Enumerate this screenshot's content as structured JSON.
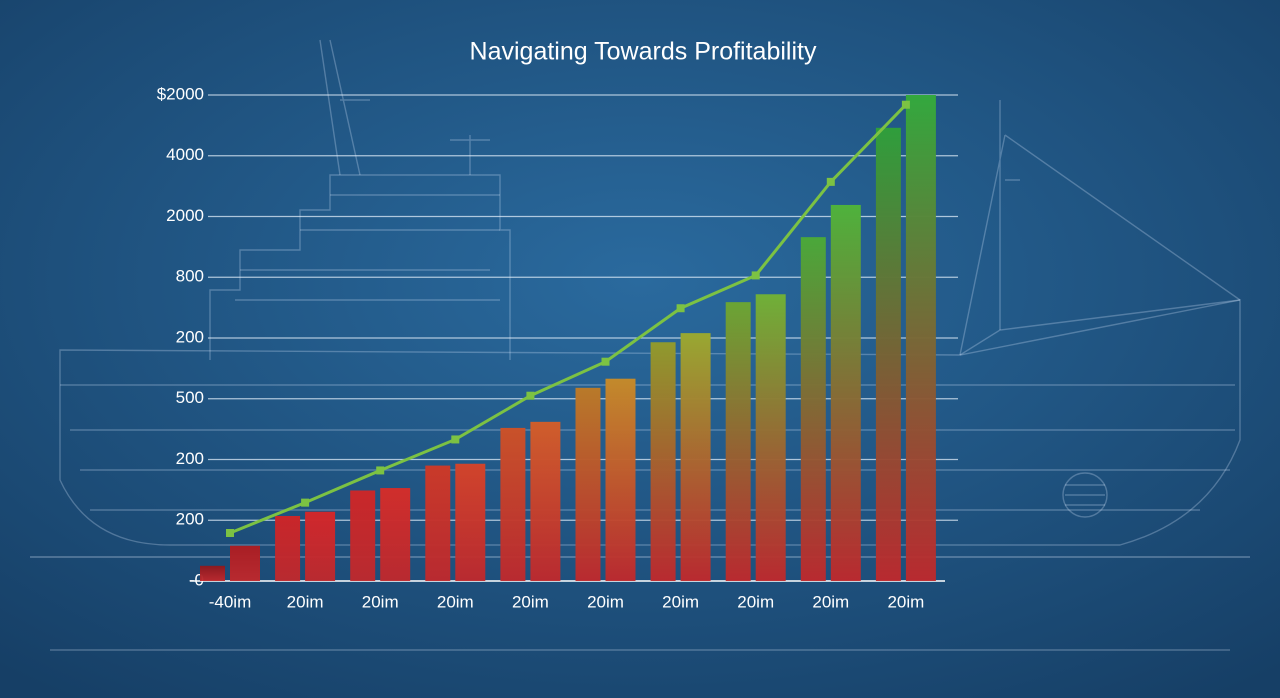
{
  "chart_data": {
    "type": "bar",
    "title": "Navigating Towards Profitability",
    "categories": [
      "-40im",
      "20im",
      "20im",
      "20im",
      "20im",
      "20im",
      "20im",
      "20im",
      "20im",
      "20im"
    ],
    "ylim": [
      0,
      8
    ],
    "yticks": [
      {
        "value": 0,
        "label": "-0"
      },
      {
        "value": 1,
        "label": "200"
      },
      {
        "value": 2,
        "label": "200"
      },
      {
        "value": 3,
        "label": "500"
      },
      {
        "value": 4,
        "label": "200"
      },
      {
        "value": 5,
        "label": "800"
      },
      {
        "value": 6,
        "label": "2000"
      },
      {
        "value": 7,
        "label": "4000"
      },
      {
        "value": 8,
        "label": "$2000"
      }
    ],
    "grid": true,
    "series": [
      {
        "type": "bar",
        "colors": [
          "#8a1a20",
          "#c9262a",
          "#c9282a",
          "#c93a2a",
          "#c8522a",
          "#b87a2a",
          "#8f9a2e",
          "#6aa535",
          "#4aa83a",
          "#2f9e3c"
        ],
        "values": [
          0.25,
          1.07,
          1.49,
          1.9,
          2.52,
          3.18,
          3.93,
          4.59,
          5.66,
          7.46
        ]
      },
      {
        "type": "bar",
        "colors": [
          "#a81e24",
          "#d0282c",
          "#d02e2c",
          "#d0442c",
          "#cf5e2c",
          "#c28a2c",
          "#98a832",
          "#6fb038",
          "#4eb23c",
          "#33a83e"
        ],
        "values": [
          0.58,
          1.14,
          1.53,
          1.93,
          2.62,
          3.33,
          4.08,
          4.72,
          6.19,
          8.0
        ]
      },
      {
        "type": "line",
        "color": "#7cc243",
        "values": [
          0.79,
          1.29,
          1.82,
          2.33,
          3.05,
          3.61,
          4.49,
          5.03,
          6.57,
          7.84
        ]
      }
    ]
  }
}
